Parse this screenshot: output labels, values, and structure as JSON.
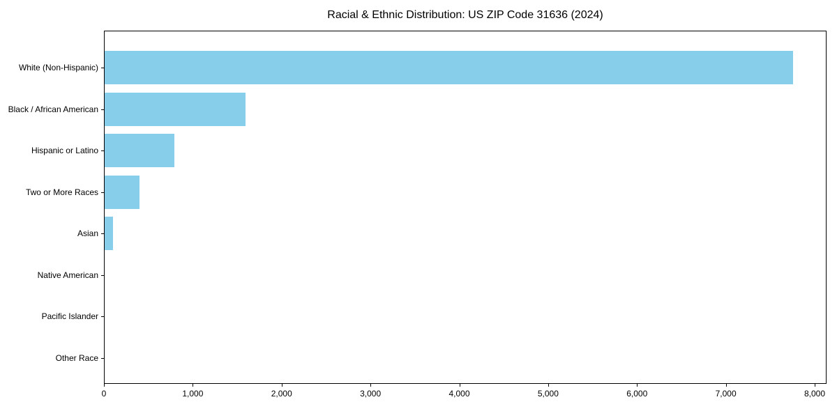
{
  "chart_data": {
    "type": "bar",
    "orientation": "horizontal",
    "title": "Racial & Ethnic Distribution: US ZIP Code 31636 (2024)",
    "categories": [
      "White (Non-Hispanic)",
      "Black / African American",
      "Hispanic or Latino",
      "Two or More Races",
      "Asian",
      "Native American",
      "Pacific Islander",
      "Other Race"
    ],
    "values": [
      7750,
      1585,
      785,
      390,
      95,
      0,
      0,
      0
    ],
    "xlabel": "",
    "ylabel": "",
    "xlim": [
      0,
      8140
    ],
    "xticks": [
      0,
      1000,
      2000,
      3000,
      4000,
      5000,
      6000,
      7000,
      8000
    ],
    "xtick_labels": [
      "0",
      "1,000",
      "2,000",
      "3,000",
      "4,000",
      "5,000",
      "6,000",
      "7,000",
      "8,000"
    ],
    "grid": false,
    "legend": "none",
    "bar_color": "#87CEEB"
  },
  "colors": {
    "bar": "#87CEEB",
    "axis": "#000000",
    "text": "#000000",
    "background": "#ffffff"
  }
}
